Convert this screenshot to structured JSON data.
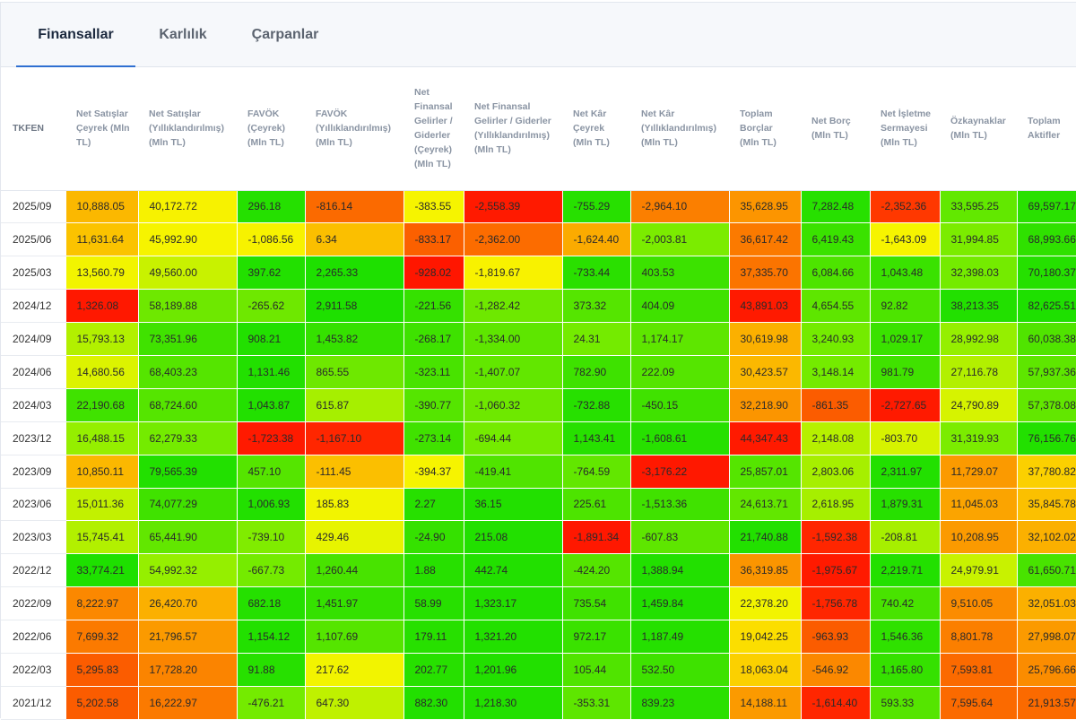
{
  "tabs": [
    {
      "label": "Finansallar",
      "active": true
    },
    {
      "label": "Karlılık",
      "active": false
    },
    {
      "label": "Çarpanlar",
      "active": false
    }
  ],
  "table": {
    "corner": "TKFEN",
    "columns": [
      "Net Satışlar Çeyrek (Mln TL)",
      "Net Satışlar (Yıllıklandırılmış) (Mln TL)",
      "FAVÖK (Çeyrek) (Mln TL)",
      "FAVÖK (Yıllıklandırılmış) (Mln TL)",
      "Net Finansal Gelirler / Giderler (Çeyrek) (Mln TL)",
      "Net Finansal Gelirler / Giderler (Yıllıklandırılmış) (Mln TL)",
      "Net Kâr Çeyrek (Mln TL)",
      "Net Kâr (Yıllıklandırılmış) (Mln TL)",
      "Toplam Borçlar (Mln TL)",
      "Net Borç (Mln TL)",
      "Net İşletme Sermayesi (Mln TL)",
      "Özkaynaklar (Mln TL)",
      "Toplam Aktifler"
    ],
    "rows": [
      {
        "period": "2025/09",
        "cells": [
          "10,888.05",
          "40,172.72",
          "296.18",
          "-816.14",
          "-383.55",
          "-2,558.39",
          "-755.29",
          "-2,964.10",
          "35,628.95",
          "7,282.48",
          "-2,352.36",
          "33,595.25",
          "69,597.17"
        ],
        "colors": [
          "#fbb800",
          "#f7f200",
          "#25e000",
          "#fb6a00",
          "#f6f400",
          "#ff1a00",
          "#27e000",
          "#fb7f00",
          "#fc9500",
          "#27e000",
          "#ff3800",
          "#62e800",
          "#29e000"
        ]
      },
      {
        "period": "2025/06",
        "cells": [
          "11,631.64",
          "45,992.90",
          "-1,086.56",
          "6.34",
          "-833.17",
          "-2,362.00",
          "-1,624.40",
          "-2,003.81",
          "36,617.42",
          "6,419.43",
          "-1,643.09",
          "31,994.85",
          "68,993.66"
        ],
        "colors": [
          "#fbc300",
          "#f6f400",
          "#f7f200",
          "#fbbf00",
          "#fb6000",
          "#fc6c00",
          "#fbab00",
          "#7bec00",
          "#fb7a00",
          "#3ae200",
          "#f6f400",
          "#7bec00",
          "#2fe100"
        ]
      },
      {
        "period": "2025/03",
        "cells": [
          "13,560.79",
          "49,560.00",
          "397.62",
          "2,265.33",
          "-928.02",
          "-1,819.67",
          "-733.44",
          "403.53",
          "37,335.70",
          "6,084.66",
          "1,043.48",
          "32,398.03",
          "70,180.37"
        ],
        "colors": [
          "#f2f400",
          "#c8f200",
          "#22e000",
          "#1ee000",
          "#ff1600",
          "#f8f200",
          "#2ae000",
          "#3ce200",
          "#fb7400",
          "#4de400",
          "#3ae200",
          "#74eb00",
          "#25e000"
        ]
      },
      {
        "period": "2024/12",
        "cells": [
          "1,326.08",
          "58,189.88",
          "-265.62",
          "2,911.58",
          "-221.56",
          "-1,282.42",
          "373.32",
          "404.09",
          "43,891.03",
          "4,654.55",
          "92.82",
          "38,213.35",
          "82,625.51"
        ],
        "colors": [
          "#ff1800",
          "#6ee800",
          "#6ee800",
          "#1ee000",
          "#35e100",
          "#6ee800",
          "#55e500",
          "#40e200",
          "#ff1a00",
          "#5ee600",
          "#4de400",
          "#22e000",
          "#1ee000"
        ]
      },
      {
        "period": "2024/09",
        "cells": [
          "15,793.13",
          "73,351.96",
          "908.21",
          "1,453.82",
          "-268.17",
          "-1,334.00",
          "24.31",
          "1,174.17",
          "30,619.98",
          "3,240.93",
          "1,029.17",
          "28,992.98",
          "60,038.38"
        ],
        "colors": [
          "#b2f000",
          "#40e200",
          "#22e000",
          "#35e100",
          "#3ee200",
          "#5ee600",
          "#74eb00",
          "#5ee600",
          "#fbb000",
          "#74eb00",
          "#3ae200",
          "#95ef00",
          "#50e400"
        ]
      },
      {
        "period": "2024/06",
        "cells": [
          "14,680.56",
          "68,403.23",
          "1,131.46",
          "865.55",
          "-323.11",
          "-1,407.07",
          "782.90",
          "222.09",
          "30,423.57",
          "3,148.14",
          "981.79",
          "27,116.78",
          "57,937.36"
        ],
        "colors": [
          "#dcf300",
          "#55e500",
          "#22e000",
          "#6ee800",
          "#48e300",
          "#62e700",
          "#3ee200",
          "#55e500",
          "#fbb800",
          "#74eb00",
          "#40e200",
          "#b2f000",
          "#5ee600"
        ]
      },
      {
        "period": "2024/03",
        "cells": [
          "22,190.68",
          "68,724.60",
          "1,043.87",
          "615.87",
          "-390.77",
          "-1,060.32",
          "-732.88",
          "-450.15",
          "32,218.90",
          "-861.35",
          "-2,727.65",
          "24,790.89",
          "57,378.08"
        ],
        "colors": [
          "#40e200",
          "#55e500",
          "#22e000",
          "#a6ef00",
          "#55e500",
          "#6ee800",
          "#27e000",
          "#40e200",
          "#fb9500",
          "#fb5c00",
          "#ff1a00",
          "#d6f300",
          "#62e700"
        ]
      },
      {
        "period": "2023/12",
        "cells": [
          "16,488.15",
          "62,279.33",
          "-1,723.38",
          "-1,167.10",
          "-273.14",
          "-694.44",
          "1,143.41",
          "-1,608.61",
          "44,347.43",
          "2,148.08",
          "-803.70",
          "31,319.93",
          "76,156.76"
        ],
        "colors": [
          "#95ef00",
          "#74eb00",
          "#ff1a00",
          "#ff2600",
          "#40e200",
          "#74eb00",
          "#27e000",
          "#27e000",
          "#ff1a00",
          "#b6f000",
          "#d6f300",
          "#7bec00",
          "#22e000"
        ]
      },
      {
        "period": "2023/09",
        "cells": [
          "10,850.11",
          "79,565.39",
          "457.10",
          "-111.45",
          "-394.37",
          "-419.41",
          "-764.59",
          "-3,176.22",
          "25,857.01",
          "2,803.06",
          "2,311.97",
          "11,729.07",
          "37,780.82"
        ],
        "colors": [
          "#fbb800",
          "#22e000",
          "#55e500",
          "#fbbf00",
          "#f6f400",
          "#50e400",
          "#62e700",
          "#ff1800",
          "#55e500",
          "#a6ef00",
          "#22e000",
          "#fb9a00",
          "#fbd000"
        ]
      },
      {
        "period": "2023/06",
        "cells": [
          "15,011.36",
          "74,077.29",
          "1,006.93",
          "185.83",
          "2.27",
          "36.15",
          "225.61",
          "-1,513.36",
          "24,613.71",
          "2,618.95",
          "1,879.31",
          "11,045.03",
          "35,845.78"
        ],
        "colors": [
          "#c2f100",
          "#40e200",
          "#22e000",
          "#f2f400",
          "#27e000",
          "#22e000",
          "#4de400",
          "#40e200",
          "#62e700",
          "#a6ef00",
          "#27e000",
          "#fba400",
          "#fbc000"
        ]
      },
      {
        "period": "2023/03",
        "cells": [
          "15,745.41",
          "65,441.90",
          "-739.10",
          "429.46",
          "-24.90",
          "215.08",
          "-1,891.34",
          "-607.83",
          "21,740.88",
          "-1,592.38",
          "-208.81",
          "10,208.95",
          "32,102.02"
        ],
        "colors": [
          "#b2f000",
          "#62e700",
          "#80ec00",
          "#e7f400",
          "#35e100",
          "#22e000",
          "#ff1800",
          "#5ee600",
          "#22e000",
          "#ff2600",
          "#a6ef00",
          "#fb9a00",
          "#fbb000"
        ]
      },
      {
        "period": "2022/12",
        "cells": [
          "33,774.21",
          "54,992.32",
          "-667.73",
          "1,260.44",
          "1.88",
          "442.74",
          "-424.20",
          "1,388.94",
          "36,319.85",
          "-1,975.67",
          "2,219.71",
          "24,979.91",
          "61,650.71"
        ],
        "colors": [
          "#1ee000",
          "#95ef00",
          "#74eb00",
          "#48e300",
          "#27e000",
          "#22e000",
          "#55e500",
          "#22e000",
          "#fb9500",
          "#ff1a00",
          "#22e000",
          "#c8f200",
          "#48e300"
        ]
      },
      {
        "period": "2022/09",
        "cells": [
          "8,222.97",
          "26,420.70",
          "682.18",
          "1,451.97",
          "58.99",
          "1,323.17",
          "735.54",
          "1,459.84",
          "22,378.20",
          "-1,756.78",
          "740.42",
          "9,510.05",
          "32,051.03"
        ],
        "colors": [
          "#fb8800",
          "#fbb000",
          "#25e000",
          "#35e100",
          "#27e000",
          "#22e000",
          "#40e200",
          "#22e000",
          "#f2f400",
          "#ff2600",
          "#48e300",
          "#fb8c00",
          "#fbb000"
        ]
      },
      {
        "period": "2022/06",
        "cells": [
          "7,699.32",
          "21,796.57",
          "1,154.12",
          "1,107.69",
          "179.11",
          "1,321.20",
          "972.17",
          "1,187.49",
          "19,042.25",
          "-963.93",
          "1,546.36",
          "8,801.78",
          "27,998.07"
        ],
        "colors": [
          "#fb7a00",
          "#fb9a00",
          "#22e000",
          "#55e500",
          "#27e000",
          "#22e000",
          "#3ae200",
          "#25e000",
          "#fbde00",
          "#fb5c00",
          "#2fe100",
          "#fb7f00",
          "#fb9a00"
        ]
      },
      {
        "period": "2022/03",
        "cells": [
          "5,295.83",
          "17,728.20",
          "91.88",
          "217.62",
          "202.77",
          "1,201.96",
          "105.44",
          "532.50",
          "18,063.04",
          "-546.92",
          "1,165.80",
          "7,593.81",
          "25,796.66"
        ],
        "colors": [
          "#fb5c00",
          "#fb8400",
          "#27e000",
          "#f2f400",
          "#27e000",
          "#22e000",
          "#50e400",
          "#3ee200",
          "#fbd000",
          "#fb8800",
          "#35e100",
          "#fb6a00",
          "#fb8c00"
        ]
      },
      {
        "period": "2021/12",
        "cells": [
          "5,202.58",
          "16,222.97",
          "-476.21",
          "647.30",
          "882.30",
          "1,218.30",
          "-353.31",
          "839.23",
          "14,188.11",
          "-1,614.40",
          "593.33",
          "7,595.64",
          "21,913.57"
        ],
        "colors": [
          "#fb5c00",
          "#fb7a00",
          "#74eb00",
          "#bff100",
          "#22e000",
          "#22e000",
          "#5ee600",
          "#2ae000",
          "#fb9a00",
          "#ff2600",
          "#55e500",
          "#fb6a00",
          "#fb6a00"
        ]
      }
    ]
  }
}
